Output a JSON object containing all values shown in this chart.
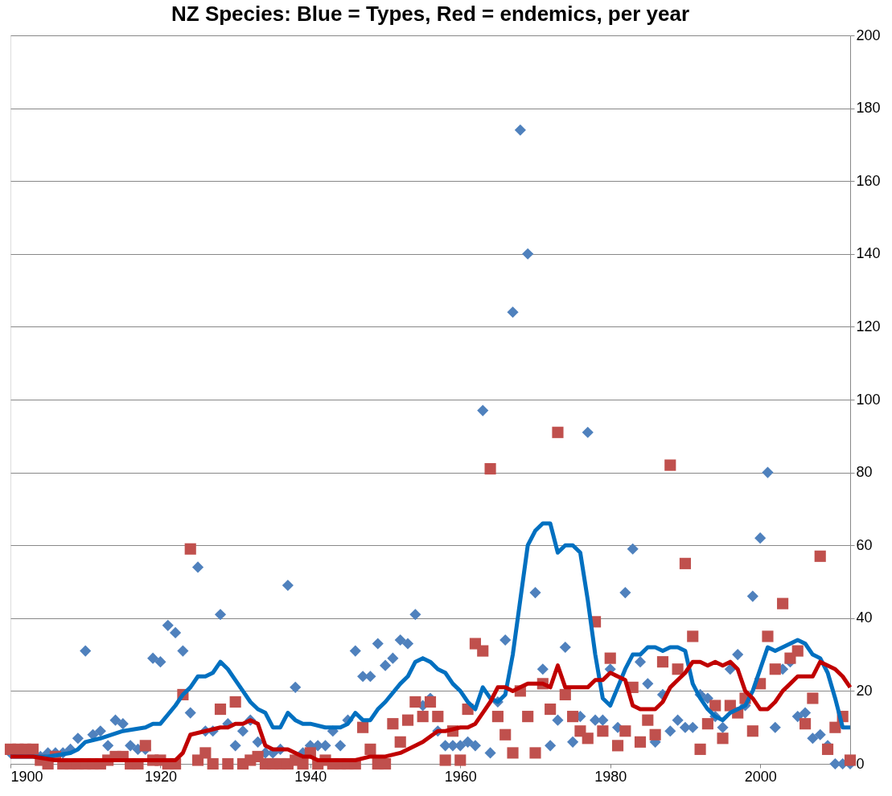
{
  "chart_data": {
    "type": "scatter",
    "title": "NZ  Species: Blue = Types, Red = endemics, per year",
    "xlim": [
      1900,
      2012
    ],
    "xticks": [
      1900,
      1920,
      1940,
      1960,
      1980,
      2000
    ],
    "ylim": [
      0,
      200
    ],
    "yticks": [
      0,
      20,
      40,
      60,
      80,
      100,
      120,
      140,
      160,
      180,
      200
    ],
    "grid": "y",
    "series": [
      {
        "marker": "diamond",
        "color": "#4f81bd",
        "x": [
          1900,
          1901,
          1902,
          1903,
          1904,
          1905,
          1906,
          1907,
          1908,
          1909,
          1910,
          1911,
          1912,
          1913,
          1914,
          1915,
          1916,
          1917,
          1918,
          1919,
          1920,
          1921,
          1922,
          1923,
          1924,
          1925,
          1926,
          1927,
          1928,
          1929,
          1930,
          1931,
          1932,
          1933,
          1934,
          1935,
          1936,
          1937,
          1938,
          1939,
          1940,
          1941,
          1942,
          1943,
          1944,
          1945,
          1946,
          1947,
          1948,
          1949,
          1950,
          1951,
          1952,
          1953,
          1954,
          1955,
          1956,
          1957,
          1958,
          1959,
          1960,
          1961,
          1962,
          1963,
          1964,
          1965,
          1966,
          1967,
          1968,
          1969,
          1970,
          1971,
          1972,
          1973,
          1974,
          1975,
          1976,
          1977,
          1978,
          1979,
          1980,
          1981,
          1982,
          1983,
          1984,
          1985,
          1986,
          1987,
          1988,
          1989,
          1990,
          1991,
          1992,
          1993,
          1994,
          1995,
          1996,
          1997,
          1998,
          1999,
          2000,
          2001,
          2002,
          2003,
          2004,
          2005,
          2006,
          2007,
          2008,
          2009,
          2010,
          2011,
          2012
        ],
        "values": [
          3,
          null,
          null,
          null,
          2,
          3,
          3,
          3,
          4,
          7,
          31,
          8,
          9,
          5,
          12,
          11,
          5,
          4,
          4,
          29,
          28,
          38,
          36,
          31,
          14,
          54,
          9,
          9,
          41,
          11,
          5,
          9,
          12,
          6,
          3,
          3,
          4,
          49,
          21,
          3,
          5,
          5,
          5,
          9,
          5,
          12,
          31,
          24,
          24,
          33,
          27,
          29,
          34,
          33,
          41,
          16,
          18,
          9,
          5,
          5,
          5,
          6,
          5,
          97,
          3,
          17,
          34,
          124,
          174,
          140,
          47,
          26,
          5,
          12,
          32,
          6,
          13,
          91,
          12,
          12,
          26,
          10,
          47,
          59,
          28,
          22,
          6,
          19,
          9,
          12,
          10,
          10,
          19,
          18,
          13,
          10,
          26,
          30,
          16,
          46,
          62,
          80,
          10,
          26,
          28,
          13,
          14,
          7,
          8,
          5,
          0,
          0,
          0
        ]
      },
      {
        "marker": "square",
        "color": "#c0504d",
        "x": [
          1900,
          1901,
          1902,
          1903,
          1904,
          1905,
          1906,
          1907,
          1908,
          1909,
          1910,
          1911,
          1912,
          1913,
          1914,
          1915,
          1916,
          1917,
          1918,
          1919,
          1920,
          1921,
          1922,
          1923,
          1924,
          1925,
          1926,
          1927,
          1928,
          1929,
          1930,
          1931,
          1932,
          1933,
          1934,
          1935,
          1936,
          1937,
          1938,
          1939,
          1940,
          1941,
          1942,
          1943,
          1944,
          1945,
          1946,
          1947,
          1948,
          1949,
          1950,
          1951,
          1952,
          1953,
          1954,
          1955,
          1956,
          1957,
          1958,
          1959,
          1960,
          1961,
          1962,
          1963,
          1964,
          1965,
          1966,
          1967,
          1968,
          1969,
          1970,
          1971,
          1972,
          1973,
          1974,
          1975,
          1976,
          1977,
          1978,
          1979,
          1980,
          1981,
          1982,
          1983,
          1984,
          1985,
          1986,
          1987,
          1988,
          1989,
          1990,
          1991,
          1992,
          1993,
          1994,
          1995,
          1996,
          1997,
          1998,
          1999,
          2000,
          2001,
          2002,
          2003,
          2004,
          2005,
          2006,
          2007,
          2008,
          2009,
          2010,
          2011,
          2012
        ],
        "values": [
          4,
          4,
          4,
          4,
          1,
          0,
          2,
          0,
          0,
          0,
          0,
          0,
          0,
          1,
          2,
          2,
          0,
          0,
          5,
          1,
          1,
          0,
          0,
          19,
          59,
          1,
          3,
          0,
          15,
          0,
          17,
          0,
          1,
          2,
          0,
          0,
          0,
          0,
          1,
          0,
          3,
          0,
          1,
          0,
          0,
          0,
          0,
          10,
          4,
          0,
          0,
          11,
          6,
          12,
          17,
          13,
          17,
          13,
          1,
          9,
          1,
          15,
          33,
          31,
          81,
          13,
          8,
          3,
          20,
          13,
          3,
          22,
          15,
          91,
          19,
          13,
          9,
          7,
          39,
          9,
          29,
          5,
          9,
          21,
          6,
          12,
          8,
          28,
          82,
          26,
          55,
          35,
          4,
          11,
          16,
          7,
          16,
          14,
          18,
          9,
          22,
          35,
          26,
          44,
          29,
          31,
          11,
          18,
          57,
          4,
          10,
          13,
          1
        ]
      },
      {
        "type": "line",
        "line_style": "solid",
        "color": "#0070c0",
        "x": [
          1900,
          1905,
          1908,
          1909,
          1910,
          1912,
          1915,
          1918,
          1919,
          1920,
          1922,
          1923,
          1924,
          1925,
          1926,
          1927,
          1928,
          1929,
          1930,
          1931,
          1932,
          1933,
          1934,
          1935,
          1936,
          1937,
          1938,
          1939,
          1940,
          1942,
          1943,
          1944,
          1945,
          1946,
          1947,
          1948,
          1949,
          1950,
          1952,
          1953,
          1954,
          1955,
          1956,
          1957,
          1958,
          1959,
          1960,
          1961,
          1962,
          1963,
          1964,
          1965,
          1966,
          1967,
          1968,
          1969,
          1970,
          1971,
          1972,
          1973,
          1974,
          1975,
          1976,
          1977,
          1978,
          1979,
          1980,
          1981,
          1982,
          1983,
          1984,
          1985,
          1986,
          1987,
          1988,
          1989,
          1990,
          1991,
          1992,
          1993,
          1994,
          1995,
          1996,
          1997,
          1998,
          1999,
          2000,
          2001,
          2002,
          2003,
          2004,
          2005,
          2006,
          2007,
          2008,
          2009,
          2010,
          2011,
          2012
        ],
        "values": [
          2,
          2,
          3,
          4,
          6,
          7,
          9,
          10,
          11,
          11,
          16,
          19,
          21,
          24,
          24,
          25,
          28,
          26,
          23,
          20,
          17,
          15,
          14,
          10,
          10,
          14,
          12,
          11,
          11,
          10,
          10,
          10,
          11,
          14,
          12,
          12,
          15,
          17,
          22,
          24,
          28,
          29,
          28,
          26,
          25,
          22,
          20,
          17,
          15,
          21,
          18,
          17,
          19,
          30,
          45,
          60,
          64,
          66,
          66,
          58,
          60,
          60,
          58,
          45,
          30,
          18,
          16,
          21,
          26,
          30,
          30,
          32,
          32,
          31,
          32,
          32,
          31,
          22,
          18,
          15,
          13,
          12,
          14,
          15,
          16,
          20,
          26,
          32,
          31,
          32,
          33,
          34,
          33,
          30,
          29,
          25,
          18,
          10,
          10
        ]
      },
      {
        "type": "line",
        "line_style": "solid",
        "color": "#c00000",
        "x": [
          1900,
          1903,
          1906,
          1910,
          1915,
          1920,
          1922,
          1923,
          1924,
          1926,
          1928,
          1929,
          1930,
          1931,
          1932,
          1933,
          1934,
          1935,
          1937,
          1938,
          1939,
          1940,
          1941,
          1945,
          1946,
          1948,
          1950,
          1952,
          1953,
          1955,
          1957,
          1958,
          1960,
          1961,
          1962,
          1963,
          1964,
          1965,
          1966,
          1967,
          1968,
          1969,
          1970,
          1971,
          1972,
          1973,
          1974,
          1975,
          1976,
          1977,
          1978,
          1979,
          1980,
          1981,
          1982,
          1983,
          1984,
          1985,
          1986,
          1987,
          1988,
          1989,
          1990,
          1991,
          1992,
          1993,
          1994,
          1995,
          1996,
          1997,
          1998,
          1999,
          2000,
          2001,
          2002,
          2003,
          2004,
          2005,
          2006,
          2007,
          2008,
          2009,
          2010,
          2011,
          2012
        ],
        "values": [
          2,
          2,
          1,
          1,
          1,
          1,
          1,
          3,
          8,
          9,
          10,
          10,
          11,
          11,
          12,
          11,
          5,
          4,
          4,
          3,
          2,
          2,
          1,
          1,
          1,
          2,
          2,
          3,
          4,
          6,
          9,
          9,
          10,
          10,
          11,
          14,
          17,
          21,
          21,
          20,
          21,
          22,
          22,
          22,
          21,
          27,
          21,
          21,
          21,
          21,
          23,
          23,
          25,
          24,
          23,
          16,
          15,
          15,
          15,
          17,
          21,
          23,
          25,
          28,
          28,
          27,
          28,
          27,
          28,
          26,
          20,
          18,
          15,
          15,
          17,
          20,
          22,
          24,
          24,
          24,
          28,
          27,
          26,
          24,
          21
        ]
      }
    ]
  }
}
